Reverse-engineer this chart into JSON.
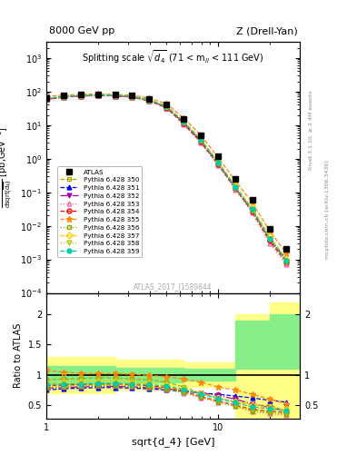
{
  "title_left": "8000 GeV pp",
  "title_right": "Z (Drell-Yan)",
  "subtitle": "Splitting scale $\\sqrt{d_4}$ (71 < m$_{ll}$ < 111 GeV)",
  "watermark": "ATLAS_2017_I1589844",
  "xlabel": "sqrt{d_4} [GeV]",
  "ylabel_main": "d$\\sigma$/dsqrt($\\overline{d_{4}}$) [pb,GeV$^{-1}$]",
  "ylabel_ratio": "Ratio to ATLAS",
  "right_label1": "Rivet 3.1.10, ≥ 2.4M events",
  "right_label2": "mcplots.cern.ch [arXiv:1306.3436]",
  "xlim": [
    1,
    30
  ],
  "ylim_main": [
    0.0001,
    3000.0
  ],
  "ylim_ratio": [
    0.28,
    2.35
  ],
  "x_data": [
    1.0,
    1.26,
    1.58,
    2.0,
    2.51,
    3.16,
    3.98,
    5.01,
    6.31,
    7.94,
    10.0,
    12.6,
    15.8,
    20.0,
    25.1
  ],
  "atlas_y": [
    65,
    75,
    80,
    82,
    80,
    75,
    60,
    40,
    15,
    5,
    1.2,
    0.25,
    0.06,
    0.008,
    0.002
  ],
  "series": [
    {
      "label": "Pythia 6.428 350",
      "color": "#aaaa00",
      "linestyle": "--",
      "marker": "s",
      "fillstyle": "none",
      "y_main": [
        60,
        70,
        75,
        78,
        76,
        70,
        55,
        35,
        12,
        3.5,
        0.75,
        0.14,
        0.03,
        0.004,
        0.0008
      ],
      "y_ratio": [
        0.92,
        0.93,
        0.94,
        0.95,
        0.95,
        0.93,
        0.92,
        0.88,
        0.8,
        0.7,
        0.62,
        0.56,
        0.5,
        0.5,
        0.4
      ]
    },
    {
      "label": "Pythia 6.428 351",
      "color": "#0000ff",
      "linestyle": "--",
      "marker": "^",
      "fillstyle": "full",
      "y_main": [
        58,
        68,
        73,
        76,
        74,
        68,
        53,
        33,
        11,
        3.2,
        0.7,
        0.13,
        0.028,
        0.004,
        0.001
      ],
      "y_ratio": [
        0.75,
        0.77,
        0.78,
        0.79,
        0.79,
        0.78,
        0.77,
        0.75,
        0.73,
        0.7,
        0.68,
        0.65,
        0.62,
        0.58,
        0.55
      ]
    },
    {
      "label": "Pythia 6.428 352",
      "color": "#aa00aa",
      "linestyle": "-.",
      "marker": "v",
      "fillstyle": "full",
      "y_main": [
        59,
        69,
        74,
        77,
        75,
        69,
        54,
        34,
        11.5,
        3.3,
        0.72,
        0.135,
        0.029,
        0.004,
        0.0009
      ],
      "y_ratio": [
        0.78,
        0.79,
        0.8,
        0.81,
        0.81,
        0.8,
        0.79,
        0.77,
        0.74,
        0.7,
        0.66,
        0.6,
        0.52,
        0.46,
        0.4
      ]
    },
    {
      "label": "Pythia 6.428 353",
      "color": "#ff66aa",
      "linestyle": ":",
      "marker": "^",
      "fillstyle": "none",
      "y_main": [
        57,
        67,
        72,
        75,
        73,
        67,
        52,
        32,
        10.5,
        3.0,
        0.65,
        0.12,
        0.025,
        0.003,
        0.0007
      ],
      "y_ratio": [
        0.8,
        0.81,
        0.82,
        0.83,
        0.83,
        0.82,
        0.8,
        0.77,
        0.7,
        0.62,
        0.55,
        0.48,
        0.4,
        0.36,
        0.33
      ]
    },
    {
      "label": "Pythia 6.428 354",
      "color": "#ff0000",
      "linestyle": "--",
      "marker": "o",
      "fillstyle": "none",
      "y_main": [
        58,
        68,
        73,
        76,
        74,
        68,
        53,
        33,
        11,
        3.1,
        0.68,
        0.13,
        0.027,
        0.0035,
        0.0008
      ],
      "y_ratio": [
        0.82,
        0.83,
        0.84,
        0.85,
        0.85,
        0.84,
        0.82,
        0.79,
        0.73,
        0.64,
        0.57,
        0.5,
        0.43,
        0.4,
        0.38
      ]
    },
    {
      "label": "Pythia 6.428 355",
      "color": "#ff8800",
      "linestyle": "--",
      "marker": "*",
      "fillstyle": "full",
      "y_main": [
        70,
        78,
        82,
        84,
        82,
        77,
        63,
        43,
        16,
        5.0,
        1.1,
        0.22,
        0.05,
        0.007,
        0.0015
      ],
      "y_ratio": [
        1.08,
        1.04,
        1.03,
        1.02,
        1.02,
        1.01,
        0.99,
        0.97,
        0.93,
        0.88,
        0.8,
        0.75,
        0.68,
        0.6,
        0.52
      ]
    },
    {
      "label": "Pythia 6.428 356",
      "color": "#88aa00",
      "linestyle": ":",
      "marker": "s",
      "fillstyle": "none",
      "y_main": [
        59,
        69,
        74,
        77,
        75,
        69,
        54,
        34,
        11.5,
        3.3,
        0.7,
        0.13,
        0.028,
        0.004,
        0.0009
      ],
      "y_ratio": [
        0.79,
        0.8,
        0.81,
        0.82,
        0.82,
        0.81,
        0.79,
        0.76,
        0.71,
        0.63,
        0.55,
        0.48,
        0.4,
        0.38,
        0.35
      ]
    },
    {
      "label": "Pythia 6.428 357",
      "color": "#ffcc00",
      "linestyle": "--",
      "marker": "D",
      "fillstyle": "none",
      "y_main": [
        62,
        72,
        77,
        80,
        78,
        72,
        57,
        37,
        13,
        3.8,
        0.82,
        0.16,
        0.035,
        0.005,
        0.001
      ],
      "y_ratio": [
        0.86,
        0.87,
        0.88,
        0.89,
        0.89,
        0.88,
        0.86,
        0.83,
        0.77,
        0.7,
        0.62,
        0.56,
        0.5,
        0.46,
        0.42
      ]
    },
    {
      "label": "Pythia 6.428 358",
      "color": "#aacc00",
      "linestyle": ":",
      "marker": "v",
      "fillstyle": "none",
      "y_main": [
        60,
        70,
        75,
        78,
        76,
        70,
        55,
        35,
        12,
        3.5,
        0.75,
        0.14,
        0.03,
        0.004,
        0.0008
      ],
      "y_ratio": [
        0.81,
        0.82,
        0.83,
        0.84,
        0.84,
        0.83,
        0.81,
        0.78,
        0.73,
        0.65,
        0.57,
        0.5,
        0.43,
        0.4,
        0.37
      ]
    },
    {
      "label": "Pythia 6.428 359",
      "color": "#00ccaa",
      "linestyle": "--",
      "marker": "o",
      "fillstyle": "full",
      "y_main": [
        61,
        71,
        76,
        79,
        77,
        71,
        56,
        36,
        12.5,
        3.6,
        0.78,
        0.145,
        0.031,
        0.0042,
        0.0009
      ],
      "y_ratio": [
        0.84,
        0.85,
        0.85,
        0.86,
        0.86,
        0.85,
        0.84,
        0.81,
        0.76,
        0.68,
        0.61,
        0.54,
        0.47,
        0.44,
        0.41
      ]
    }
  ],
  "band_edges_x": [
    1.0,
    2.51,
    6.31,
    12.6,
    20.0,
    30.0
  ],
  "band_yellow_lo": [
    0.7,
    0.75,
    0.8,
    0.2,
    0.2
  ],
  "band_yellow_hi": [
    1.3,
    1.25,
    1.2,
    2.0,
    2.2
  ],
  "band_green_lo": [
    0.85,
    0.88,
    0.9,
    1.1,
    1.1
  ],
  "band_green_hi": [
    1.15,
    1.12,
    1.1,
    1.9,
    2.0
  ]
}
